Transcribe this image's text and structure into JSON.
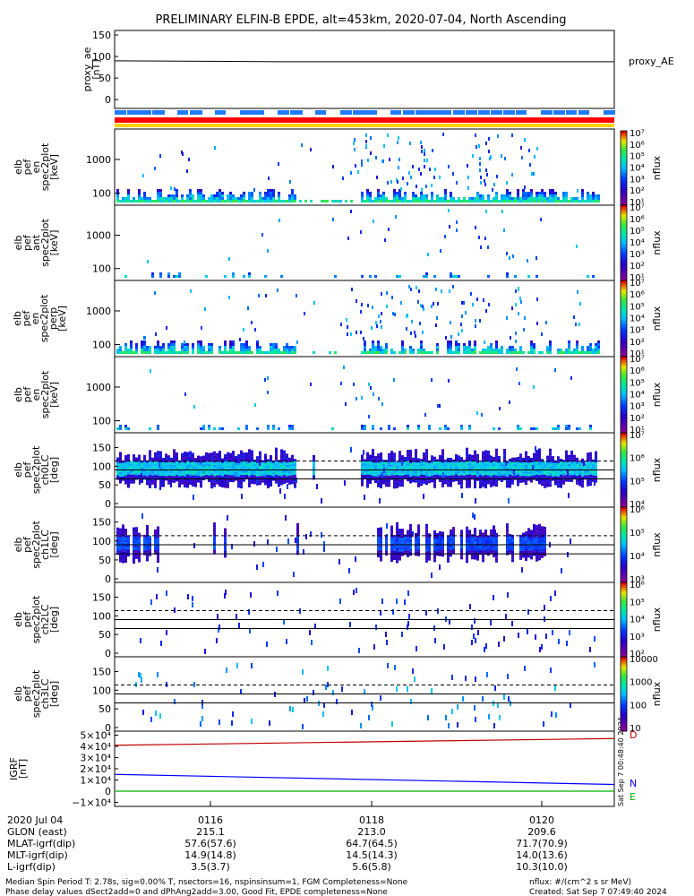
{
  "title": "PRELIMINARY ELFIN-B EPDE, alt=453km, 2020-07-04, North Ascending",
  "proxy_ae": {
    "ylabel_lines": [
      "proxy_ae",
      "[nT]"
    ],
    "yticks": [
      "150",
      "100",
      "50",
      "0"
    ],
    "legend": "proxy_AE",
    "value": 88
  },
  "spec_panels": [
    {
      "ylabel_lines": [
        "elb",
        "pef",
        "en",
        "spec2plot",
        "[keV]"
      ],
      "yticks": [
        "1000",
        "100"
      ]
    },
    {
      "ylabel_lines": [
        "elb",
        "pef",
        "ant",
        "spec2plot",
        "[keV]"
      ],
      "yticks": [
        "1000",
        "100"
      ]
    },
    {
      "ylabel_lines": [
        "elb",
        "pef",
        "en",
        "spec2plot",
        "perp",
        "[keV]"
      ],
      "yticks": [
        "1000",
        "100"
      ]
    },
    {
      "ylabel_lines": [
        "elb",
        "pef",
        "en",
        "spec2plot",
        "[keV]"
      ],
      "yticks": [
        "1000",
        "100"
      ]
    }
  ],
  "pa_panels": [
    {
      "ylabel_lines": [
        "elb",
        "pef",
        "spec2plot",
        "ch0LC",
        "[deg]"
      ],
      "yticks": [
        "150",
        "100",
        "50",
        "0"
      ]
    },
    {
      "ylabel_lines": [
        "elb",
        "pef",
        "spec2plot",
        "ch1LC",
        "[deg]"
      ],
      "yticks": [
        "150",
        "100",
        "50",
        "0"
      ]
    },
    {
      "ylabel_lines": [
        "elb",
        "pef",
        "spec2plot",
        "ch2LC",
        "[deg]"
      ],
      "yticks": [
        "150",
        "100",
        "50",
        "0"
      ]
    },
    {
      "ylabel_lines": [
        "elb",
        "pef",
        "spec2plot",
        "ch3LC",
        "[deg]"
      ],
      "yticks": [
        "150",
        "100",
        "50",
        "0"
      ]
    }
  ],
  "colorbars": [
    {
      "ticks": [
        "10⁷",
        "10⁶",
        "10⁵",
        "10⁴",
        "10³",
        "10²",
        "10¹"
      ],
      "label": "nflux"
    },
    {
      "ticks": [
        "10⁷",
        "10⁶",
        "10⁵",
        "10⁴",
        "10³",
        "10²",
        "10¹"
      ],
      "label": "nflux"
    },
    {
      "ticks": [
        "10⁷",
        "10⁶",
        "10⁵",
        "10⁴",
        "10³",
        "10²",
        "10¹"
      ],
      "label": "nflux"
    },
    {
      "ticks": [
        "10⁷",
        "10⁶",
        "10⁵",
        "10⁴",
        "10³",
        "10²",
        "10¹"
      ],
      "label": "nflux"
    },
    {
      "ticks": [
        "10⁷",
        "10⁶",
        "10⁵",
        "10⁴"
      ],
      "label": "nflux"
    },
    {
      "ticks": [
        "10⁶",
        "10⁵",
        "10⁴",
        "10³"
      ],
      "label": "nflux"
    },
    {
      "ticks": [
        "10⁶",
        "10⁵",
        "10⁴",
        "10³",
        "10²"
      ],
      "label": "nflux"
    },
    {
      "ticks": [
        "10000",
        "1000",
        "100",
        "10"
      ],
      "label": "nflux"
    }
  ],
  "igrf": {
    "ylabel_lines": [
      "IGRF",
      "[nT]"
    ],
    "yticks": [
      "5×10⁴",
      "4×10⁴",
      "3×10⁴",
      "2×10⁴",
      "1×10⁴",
      "0",
      "−1×10⁴"
    ],
    "legend": [
      "D",
      "N",
      "E"
    ],
    "stamp": "Sat Sep  7 00:48:40 2024"
  },
  "xaxis": {
    "row_labels": [
      "2020 Jul 04",
      "GLON (east)",
      "MLAT-igrf(dip)",
      "MLT-igrf(dip)",
      "L-igrf(dip)"
    ],
    "columns": [
      {
        "values": [
          "0116",
          "215.1",
          "57.6(57.6)",
          "14.9(14.8)",
          "3.5(3.7)"
        ]
      },
      {
        "values": [
          "0118",
          "213.0",
          "64.7(64.5)",
          "14.5(14.3)",
          "5.6(5.8)"
        ]
      },
      {
        "values": [
          "0120",
          "209.6",
          "71.7(70.9)",
          "14.0(13.6)",
          "10.3(10.0)"
        ]
      }
    ]
  },
  "footer": {
    "line1": "Median Spin Period T: 2.78s, sig=0.00% T, nsectors=16, nspinsinsum=1, FGM Completeness=None",
    "line2": "Phase delay values dSect2add=0 and dPhAng2add=3.00, Good Fit, EPDE completeness=None",
    "units": "nflux: #/(cm^2 s sr MeV)",
    "created": "Created: Sat Sep  7 07:49:40 2024"
  },
  "chart_data": {
    "type": "heatmap",
    "title": "PRELIMINARY ELFIN-B EPDE, alt=453km, 2020-07-04, North Ascending",
    "x_ticks": [
      "0116",
      "0118",
      "0120"
    ],
    "panels": [
      {
        "name": "proxy_AE",
        "type": "line",
        "ylabel": "proxy_ae [nT]",
        "ylim": [
          -10,
          155
        ],
        "values": [
          90,
          88,
          88,
          88
        ]
      },
      {
        "name": "elb pef en spec2plot",
        "type": "heatmap",
        "ylabel": "[keV]",
        "y_scale": "log",
        "yticks": [
          100,
          1000
        ]
      },
      {
        "name": "elb pef ant spec2plot",
        "type": "heatmap",
        "ylabel": "[keV]",
        "y_scale": "log",
        "yticks": [
          100,
          1000
        ]
      },
      {
        "name": "elb pef en spec2plot perp",
        "type": "heatmap",
        "ylabel": "[keV]",
        "y_scale": "log",
        "yticks": [
          100,
          1000
        ]
      },
      {
        "name": "elb pef en spec2plot",
        "type": "heatmap",
        "ylabel": "[keV]",
        "y_scale": "log",
        "yticks": [
          100,
          1000
        ]
      },
      {
        "name": "elb pef spec2plot ch0LC",
        "type": "heatmap",
        "ylabel": "[deg]",
        "ylim": [
          0,
          180
        ]
      },
      {
        "name": "elb pef spec2plot ch1LC",
        "type": "heatmap",
        "ylabel": "[deg]",
        "ylim": [
          0,
          180
        ]
      },
      {
        "name": "elb pef spec2plot ch2LC",
        "type": "heatmap",
        "ylabel": "[deg]",
        "ylim": [
          0,
          180
        ]
      },
      {
        "name": "elb pef spec2plot ch3LC",
        "type": "heatmap",
        "ylabel": "[deg]",
        "ylim": [
          0,
          180
        ]
      },
      {
        "name": "IGRF",
        "type": "line",
        "ylabel": "IGRF [nT]",
        "ylim": [
          -12000,
          52000
        ],
        "series": [
          {
            "name": "D",
            "color": "#c00000",
            "start": 41000,
            "end": 47000
          },
          {
            "name": "N",
            "color": "#0000ff",
            "start": 15000,
            "end": 6000
          },
          {
            "name": "E",
            "color": "#00b000",
            "start": 0,
            "end": 0
          }
        ]
      }
    ],
    "colorscale": "nflux"
  }
}
